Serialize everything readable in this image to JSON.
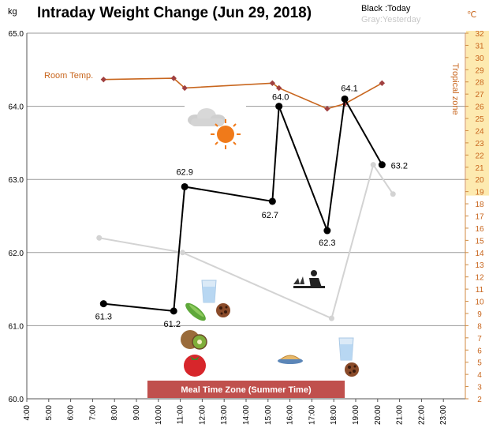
{
  "chart_data": {
    "type": "line",
    "title": "Intraday Weight Change (Jun 29, 2018)",
    "left_unit": "kg",
    "right_unit": "℃",
    "legend": {
      "today": "Black :Today",
      "yesterday": "Gray:Yesterday"
    },
    "legend_position": "top-right",
    "room_temp_label": "Room Temp.",
    "tropical_zone_label": "Tropical zone",
    "meal_zone_label": "Meal Time Zone  (Summer Time)",
    "x_ticks": [
      "4:00",
      "5:00",
      "6:00",
      "7:00",
      "8:00",
      "9:00",
      "10:00",
      "11:00",
      "12:00",
      "13:00",
      "14:00",
      "15:00",
      "16:00",
      "17:00",
      "18:00",
      "19:00",
      "20:00",
      "21:00",
      "22:00",
      "23:00"
    ],
    "y_left_ticks": [
      "60.0",
      "61.0",
      "62.0",
      "63.0",
      "64.0",
      "65.0"
    ],
    "y_left_range": [
      60.0,
      65.0
    ],
    "y_right_ticks": [
      "2",
      "3",
      "4",
      "5",
      "6",
      "7",
      "8",
      "9",
      "10",
      "11",
      "12",
      "13",
      "14",
      "15",
      "16",
      "17",
      "18",
      "19",
      "20",
      "21",
      "22",
      "23",
      "24",
      "25",
      "26",
      "27",
      "28",
      "29",
      "30",
      "31",
      "32"
    ],
    "y_right_range": [
      2,
      32
    ],
    "tropical_zone_range": [
      19,
      32
    ],
    "meal_zone_hours": [
      9.5,
      18.5
    ],
    "gridlines": "horizontal",
    "series": [
      {
        "name": "Today",
        "color": "#000000",
        "points": [
          {
            "x": 7.5,
            "y": 61.3,
            "label": "61.3"
          },
          {
            "x": 10.7,
            "y": 61.2,
            "label": "61.2"
          },
          {
            "x": 11.2,
            "y": 62.9,
            "label": "62.9"
          },
          {
            "x": 15.2,
            "y": 62.7,
            "label": "62.7"
          },
          {
            "x": 15.5,
            "y": 64.0,
            "label": "64.0"
          },
          {
            "x": 17.7,
            "y": 62.3,
            "label": "62.3"
          },
          {
            "x": 18.5,
            "y": 64.1,
            "label": "64.1"
          },
          {
            "x": 20.2,
            "y": 63.2,
            "label": "63.2"
          }
        ]
      },
      {
        "name": "Yesterday",
        "color": "#d3d3d3",
        "points": [
          {
            "x": 7.3,
            "y": 62.2
          },
          {
            "x": 11.1,
            "y": 62.0
          },
          {
            "x": 17.9,
            "y": 61.1
          },
          {
            "x": 19.8,
            "y": 63.2
          },
          {
            "x": 20.7,
            "y": 62.8
          }
        ]
      },
      {
        "name": "Room Temp.",
        "color": "#c8661e",
        "marker_color": "#a04040",
        "axis": "right",
        "points": [
          {
            "x": 7.5,
            "y": 28.2
          },
          {
            "x": 10.7,
            "y": 28.3
          },
          {
            "x": 11.2,
            "y": 27.5
          },
          {
            "x": 15.2,
            "y": 27.9
          },
          {
            "x": 15.5,
            "y": 27.5
          },
          {
            "x": 17.7,
            "y": 25.8
          },
          {
            "x": 18.5,
            "y": 26.2
          },
          {
            "x": 20.2,
            "y": 27.9
          }
        ]
      }
    ],
    "icons": [
      {
        "name": "cloud-icon"
      },
      {
        "name": "sun-icon"
      },
      {
        "name": "water-glass-icon"
      },
      {
        "name": "cucumber-icon"
      },
      {
        "name": "chocolate-cookie-icon"
      },
      {
        "name": "kiwi-icon"
      },
      {
        "name": "tomato-icon"
      },
      {
        "name": "gardening-icon"
      },
      {
        "name": "noodle-bowl-icon"
      },
      {
        "name": "water-glass-icon"
      },
      {
        "name": "chocolate-cookie-icon"
      }
    ]
  }
}
